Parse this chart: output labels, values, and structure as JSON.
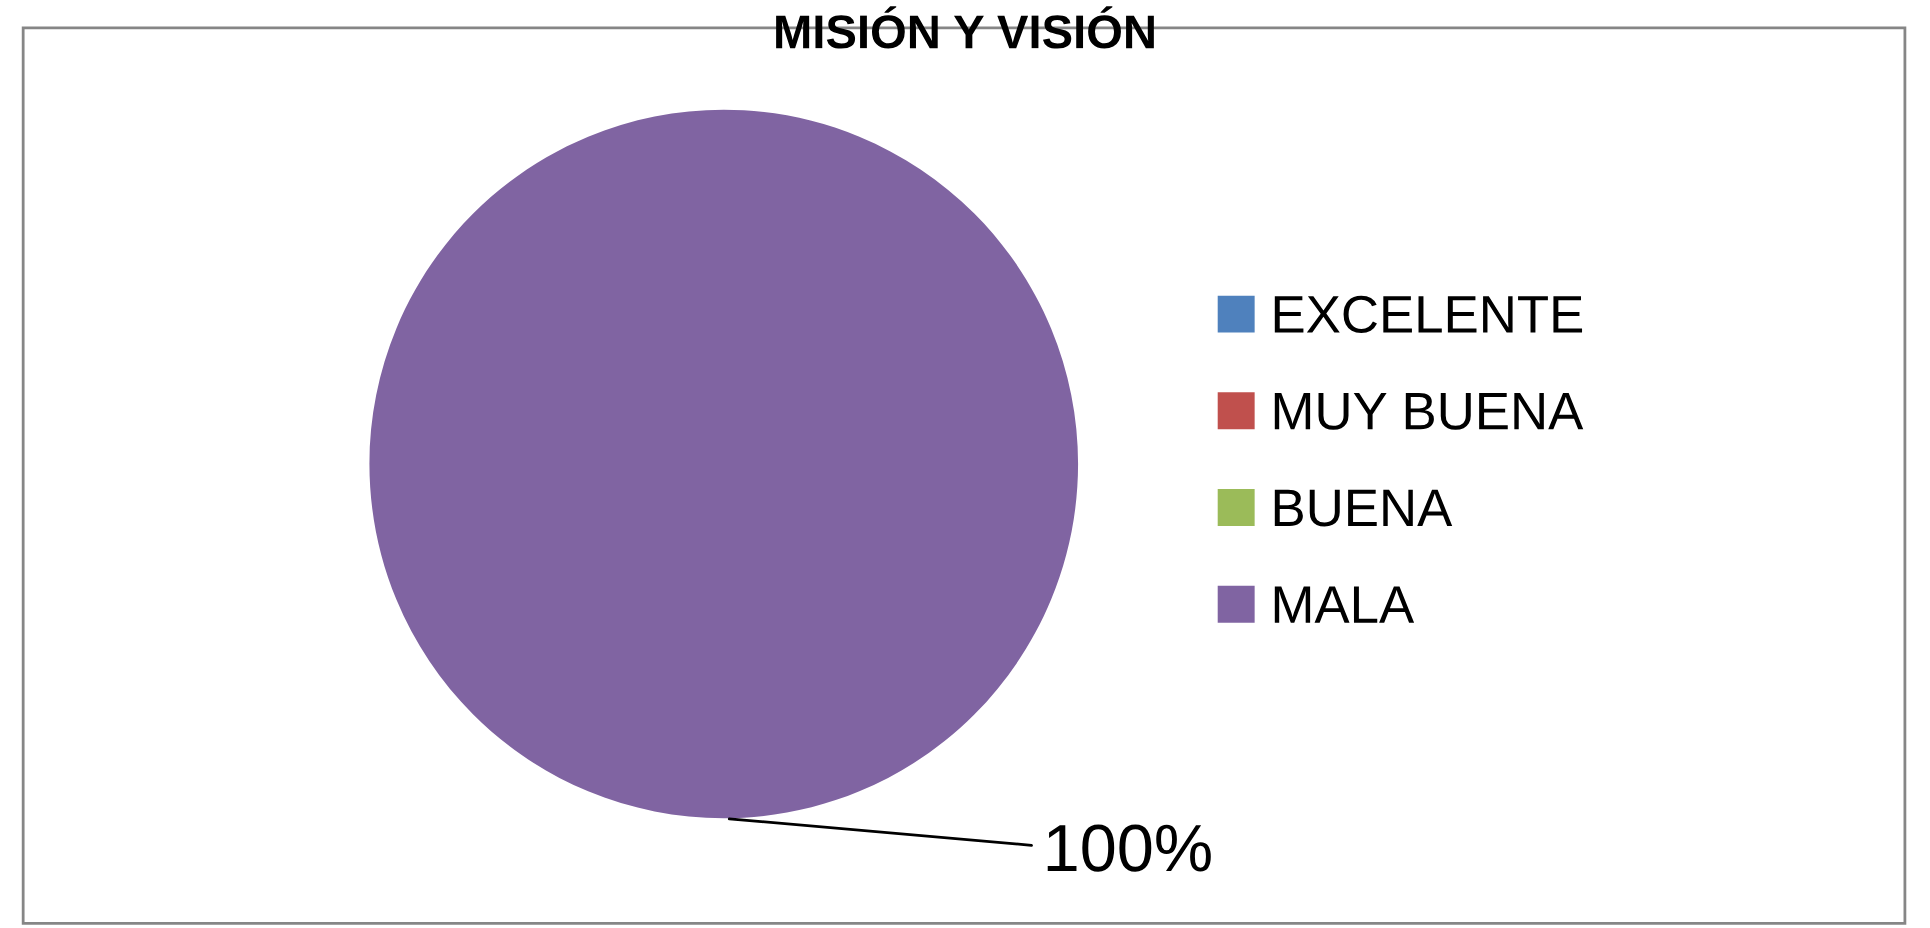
{
  "chart_data": {
    "type": "pie",
    "title": "MISIÓN Y VISIÓN",
    "categories": [
      "EXCELENTE",
      "MUY BUENA",
      "BUENA",
      "MALA"
    ],
    "values": [
      0,
      0,
      0,
      100
    ],
    "colors": [
      "#4f81bd",
      "#c0504d",
      "#9bbb59",
      "#8064a2"
    ],
    "value_labels": [
      null,
      null,
      null,
      "100%"
    ],
    "legend": "right"
  }
}
